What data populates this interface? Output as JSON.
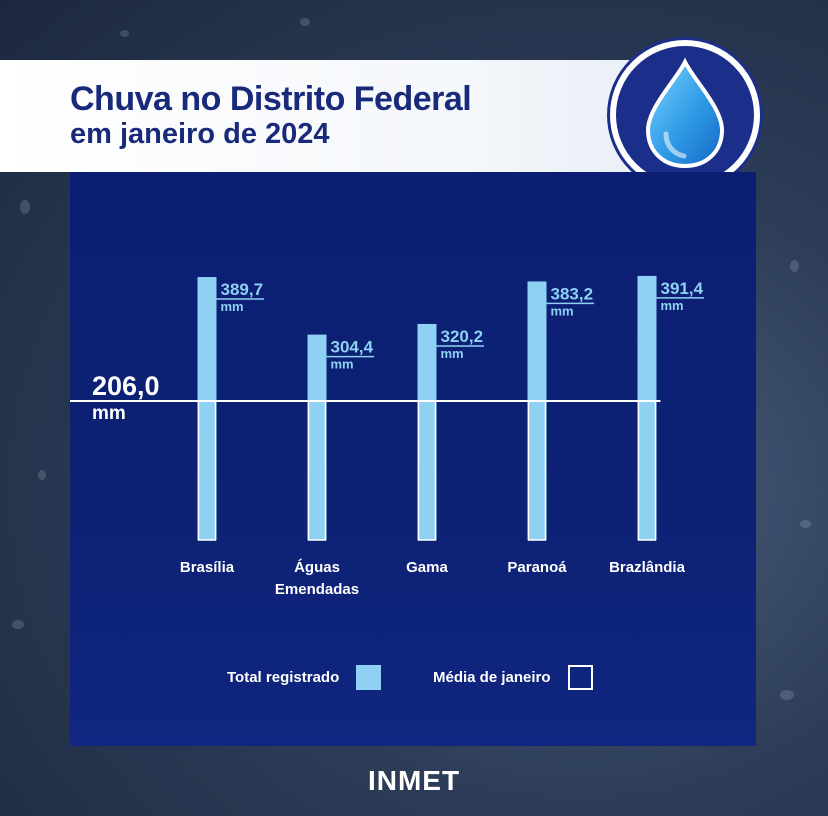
{
  "header": {
    "title_line1": "Chuva no Distrito Federal",
    "title_line2": "em janeiro de 2024",
    "badge_icon": "water-drop-icon"
  },
  "chart_data": {
    "type": "bar",
    "categories": [
      "Brasília",
      "Águas Emendadas",
      "Gama",
      "Paranoá",
      "Brazlândia"
    ],
    "category_lines": [
      [
        "Brasília"
      ],
      [
        "Águas",
        "Emendadas"
      ],
      [
        "Gama"
      ],
      [
        "Paranoá"
      ],
      [
        "Brazlândia"
      ]
    ],
    "values": [
      389.7,
      304.4,
      320.2,
      383.2,
      391.4
    ],
    "value_labels": [
      "389,7",
      "304,4",
      "320,2",
      "383,2",
      "391,4"
    ],
    "unit": "mm",
    "reference_line": {
      "value": 206.0,
      "label": "206,0",
      "unit": "mm"
    },
    "ylim": [
      0,
      391.4
    ],
    "bar_color": "#8ed1f2",
    "reference_color": "#ffffff"
  },
  "legend": {
    "total_label": "Total registrado",
    "average_label": "Média de janeiro"
  },
  "footer": {
    "brand": "INMET"
  }
}
